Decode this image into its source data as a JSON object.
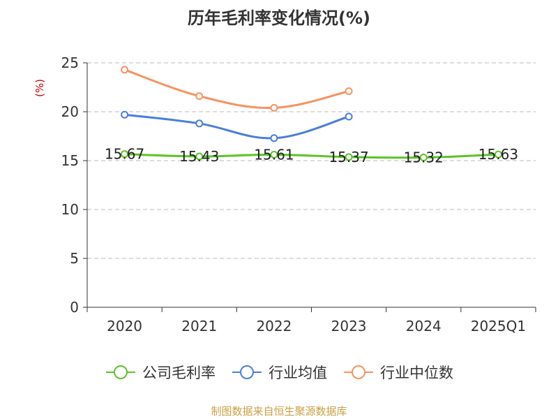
{
  "chart_data": {
    "type": "line",
    "title": "历年毛利率变化情况(%)",
    "ylabel": "(%)",
    "xlabel": "",
    "categories": [
      "2020",
      "2021",
      "2022",
      "2023",
      "2024",
      "2025Q1"
    ],
    "ylim": [
      0,
      25
    ],
    "yticks": [
      0,
      5,
      10,
      15,
      20,
      25
    ],
    "grid": "horizontal-dashed",
    "legend_position": "bottom",
    "series": [
      {
        "name": "公司毛利率",
        "color": "#5ac328",
        "values": [
          15.67,
          15.43,
          15.61,
          15.37,
          15.32,
          15.63
        ],
        "data_labels": [
          "15.67",
          "15.43",
          "15.61",
          "15.37",
          "15.32",
          "15.63"
        ]
      },
      {
        "name": "行业均值",
        "color": "#4a7fd8",
        "values": [
          19.7,
          18.8,
          17.3,
          19.5,
          null,
          null
        ]
      },
      {
        "name": "行业中位数",
        "color": "#f59361",
        "values": [
          24.3,
          21.6,
          20.4,
          22.1,
          null,
          null
        ]
      }
    ]
  },
  "source": "制图数据来自恒生聚源数据库"
}
